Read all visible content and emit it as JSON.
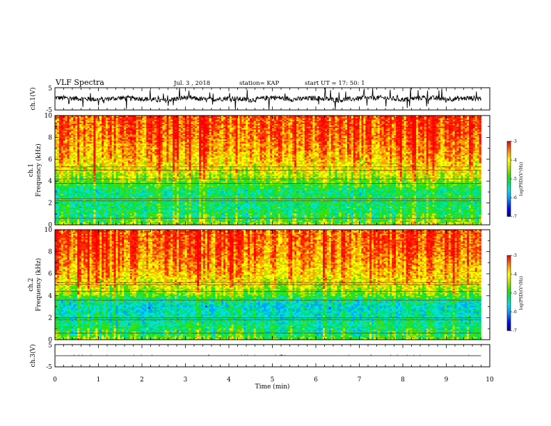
{
  "header": {
    "title": "VLF Spectra",
    "date": "Jul. 3 , 2018",
    "station": "station= KAP",
    "start": "start UT = 17: 50: 1"
  },
  "colors": {
    "spectrogram_scale": [
      "#000080",
      "#0000ff",
      "#00a0ff",
      "#00e0e0",
      "#00e060",
      "#40e000",
      "#c0e000",
      "#ffff00",
      "#ffa000",
      "#ff3000",
      "#ff0000"
    ],
    "trace": "#000000"
  },
  "chart_data": [
    {
      "type": "line",
      "panel": "ch1-waveform",
      "ylabel": "ch.1(V)",
      "ylim": [
        -5,
        5
      ],
      "yticks": [
        "5",
        "-5"
      ],
      "xlim": [
        0,
        10
      ],
      "x": [
        0,
        0.5,
        1,
        1.5,
        2,
        2.5,
        3,
        3.5,
        4,
        4.5,
        5,
        5.5,
        6,
        6.5,
        7,
        7.5,
        8,
        8.5,
        9,
        9.5,
        9.8
      ],
      "y": [
        0.5,
        0.2,
        -0.3,
        0.4,
        0.1,
        -0.8,
        0.6,
        -0.4,
        0.3,
        -0.5,
        0.7,
        -0.2,
        0.4,
        -0.6,
        0.2,
        0.5,
        -0.3,
        0.6,
        -0.1,
        0.3,
        0.2
      ]
    },
    {
      "type": "heatmap",
      "panel": "ch1-spectrogram",
      "ylabel": "ch.1\nFrequency (kHz)",
      "ylim": [
        0,
        10
      ],
      "yticks": [
        "0",
        "2",
        "4",
        "6",
        "8",
        "10"
      ],
      "xlim": [
        0,
        10
      ],
      "x_end": 9.8,
      "colorbar": {
        "label": "log(PSD)(V²/Hz)",
        "ticks": [
          "-3",
          "-4",
          "-5",
          "-6",
          "-7"
        ],
        "range": [
          -7,
          -3
        ]
      },
      "freq_profile_khz": [
        0,
        0.5,
        1,
        1.5,
        2,
        2.5,
        3,
        3.5,
        4,
        4.5,
        5,
        5.5,
        6,
        7,
        8,
        9,
        10
      ],
      "log_psd_profile": [
        -4.6,
        -5.2,
        -5.3,
        -5.4,
        -5.4,
        -5.3,
        -5.5,
        -5.2,
        -4.9,
        -4.6,
        -4.4,
        -4.2,
        -4.0,
        -3.8,
        -3.6,
        -3.5,
        -3.5
      ],
      "horizontal_lines_khz": [
        0.6,
        2.2,
        2.4,
        3.8,
        4.2,
        5.0,
        5.3
      ]
    },
    {
      "type": "heatmap",
      "panel": "ch2-spectrogram",
      "ylabel": "ch.2\nFrequency (kHz)",
      "ylim": [
        0,
        10
      ],
      "yticks": [
        "0",
        "2",
        "4",
        "6",
        "8",
        "10"
      ],
      "xlim": [
        0,
        10
      ],
      "x_end": 9.8,
      "colorbar": {
        "label": "log(PSD)(V²/Hz)",
        "ticks": [
          "-3",
          "-4",
          "-5",
          "-6",
          "-7"
        ],
        "range": [
          -7,
          -3
        ]
      },
      "freq_profile_khz": [
        0,
        0.5,
        1,
        1.5,
        2,
        2.5,
        3,
        3.5,
        4,
        4.5,
        5,
        5.5,
        6,
        7,
        8,
        9,
        10
      ],
      "log_psd_profile": [
        -4.8,
        -5.3,
        -5.4,
        -5.5,
        -5.6,
        -5.7,
        -5.8,
        -5.6,
        -5.0,
        -4.7,
        -4.4,
        -4.2,
        -4.0,
        -3.8,
        -3.6,
        -3.5,
        -3.5
      ],
      "horizontal_lines_khz": [
        0.6,
        1.8,
        2.0,
        3.6,
        4.4,
        5.0,
        5.2
      ]
    },
    {
      "type": "line",
      "panel": "ch3-waveform",
      "ylabel": "ch.3(V)",
      "ylim": [
        -5,
        5
      ],
      "yticks": [
        "5",
        "-5"
      ],
      "xlim": [
        0,
        10
      ],
      "x": [
        0,
        9.8
      ],
      "y": [
        0,
        0
      ],
      "xlabel": "Time (min)",
      "xticks": [
        "0",
        "1",
        "2",
        "3",
        "4",
        "5",
        "6",
        "7",
        "8",
        "9",
        "10"
      ]
    }
  ]
}
